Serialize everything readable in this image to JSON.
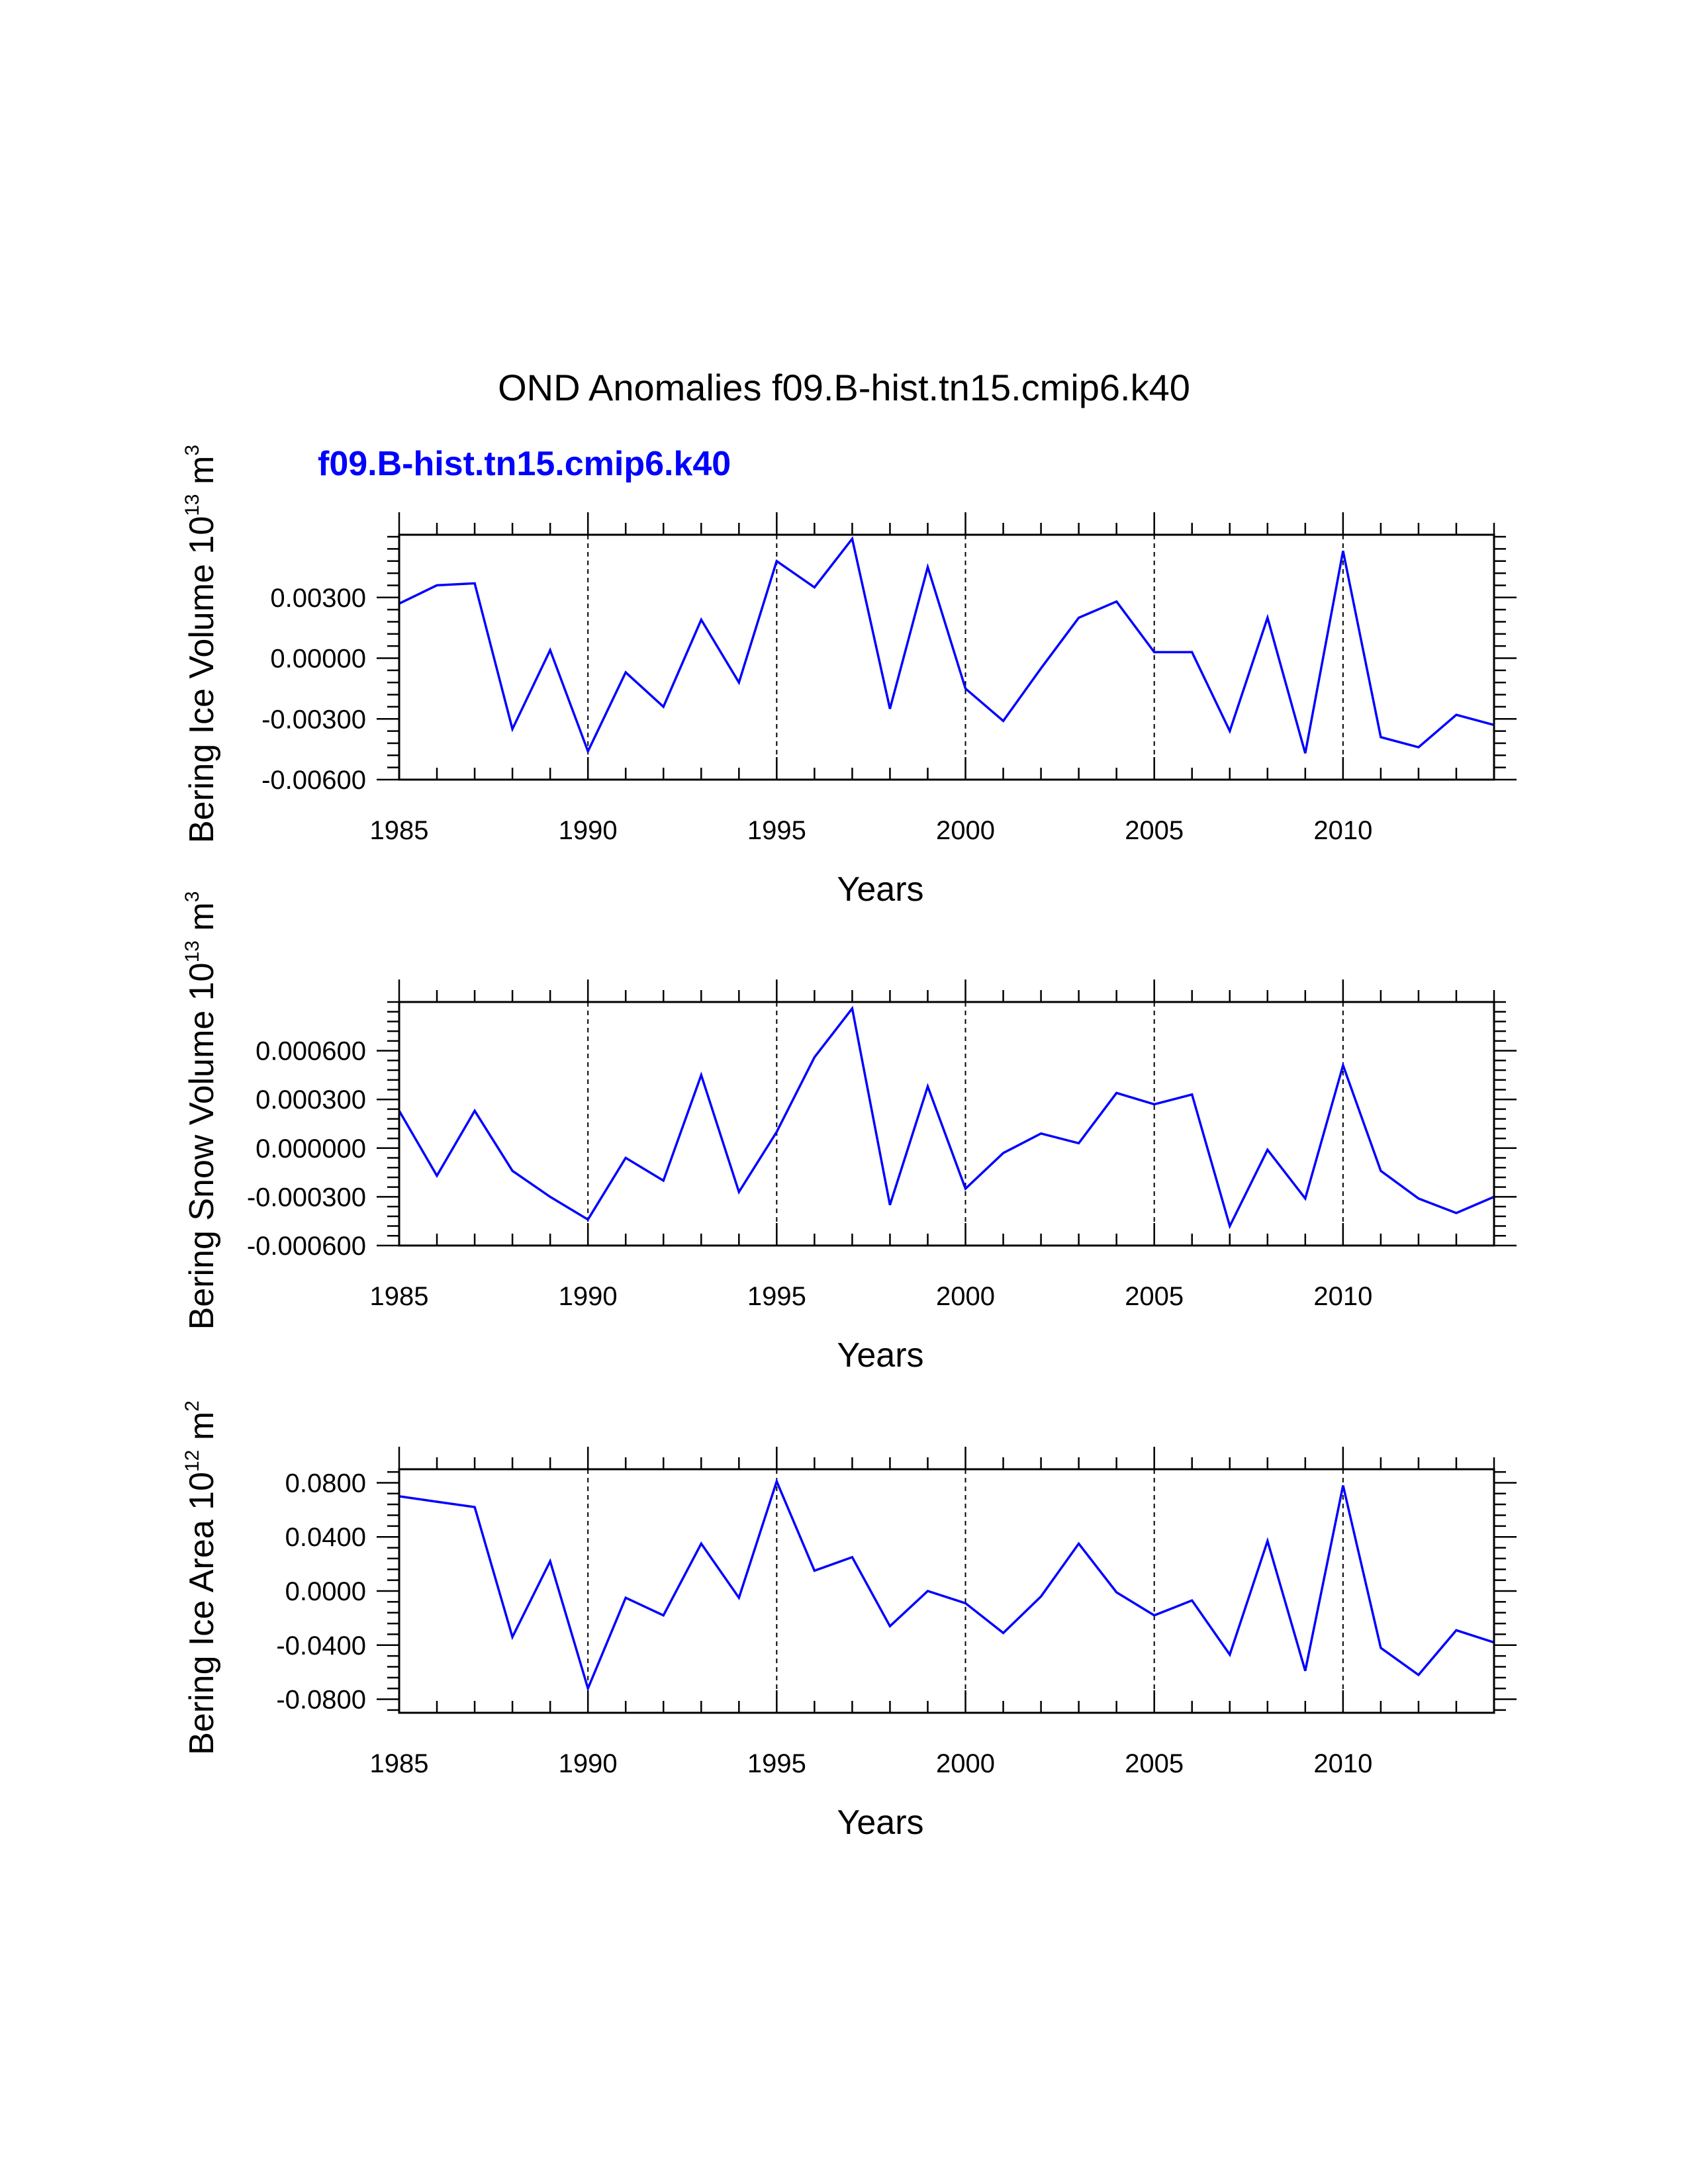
{
  "title": "OND Anomalies f09.B-hist.tn15.cmip6.k40",
  "legend": {
    "label": "f09.B-hist.tn15.cmip6.k40",
    "color": "#0000ff"
  },
  "colors": {
    "series": "#0000ff",
    "axis": "#000000",
    "grid": "#000000"
  },
  "chart_data": [
    {
      "type": "line",
      "name": "ice-volume",
      "ylabel_main": "Bering Ice Volume 10",
      "ylabel_exp": "13",
      "ylabel_unit": " m",
      "ylabel_unit_exp": "3",
      "xlabel": "Years",
      "xlim": [
        1985,
        2014
      ],
      "ylim": [
        -0.006,
        0.0061
      ],
      "xticks": [
        "1985",
        "1990",
        "1995",
        "2000",
        "2005",
        "2010"
      ],
      "yticks": [
        {
          "v": 0.003,
          "label": "0.00300"
        },
        {
          "v": 0.0,
          "label": "0.00000"
        },
        {
          "v": -0.003,
          "label": "-0.00300"
        },
        {
          "v": -0.006,
          "label": "-0.00600"
        }
      ],
      "vgrid": [
        1990,
        1995,
        2000,
        2005,
        2010
      ],
      "x": [
        1985,
        1986,
        1987,
        1988,
        1989,
        1990,
        1991,
        1992,
        1993,
        1994,
        1995,
        1996,
        1997,
        1998,
        1999,
        2000,
        2001,
        2002,
        2003,
        2004,
        2005,
        2006,
        2007,
        2008,
        2009,
        2010,
        2011,
        2012,
        2013,
        2014
      ],
      "values": [
        0.0027,
        0.0036,
        0.0037,
        -0.0035,
        0.0004,
        -0.0046,
        -0.0007,
        -0.0024,
        0.0019,
        -0.0012,
        0.0048,
        0.0035,
        0.0059,
        -0.0025,
        0.0045,
        -0.0015,
        -0.0031,
        -0.0005,
        0.002,
        0.0028,
        0.0003,
        0.0003,
        -0.0036,
        0.002,
        -0.0047,
        0.0053,
        -0.0039,
        -0.0044,
        -0.0028,
        -0.0033
      ]
    },
    {
      "type": "line",
      "name": "snow-volume",
      "ylabel_main": "Bering Snow Volume 10",
      "ylabel_exp": "13",
      "ylabel_unit": " m",
      "ylabel_unit_exp": "3",
      "xlabel": "Years",
      "xlim": [
        1985,
        2014
      ],
      "ylim": [
        -0.0006,
        0.0009
      ],
      "xticks": [
        "1985",
        "1990",
        "1995",
        "2000",
        "2005",
        "2010"
      ],
      "yticks": [
        {
          "v": 0.0006,
          "label": "0.000600"
        },
        {
          "v": 0.0003,
          "label": "0.000300"
        },
        {
          "v": 0.0,
          "label": "0.000000"
        },
        {
          "v": -0.0003,
          "label": "-0.000300"
        },
        {
          "v": -0.0006,
          "label": "-0.000600"
        }
      ],
      "vgrid": [
        1990,
        1995,
        2000,
        2005,
        2010
      ],
      "x": [
        1985,
        1986,
        1987,
        1988,
        1989,
        1990,
        1991,
        1992,
        1993,
        1994,
        1995,
        1996,
        1997,
        1998,
        1999,
        2000,
        2001,
        2002,
        2003,
        2004,
        2005,
        2006,
        2007,
        2008,
        2009,
        2010,
        2011,
        2012,
        2013,
        2014
      ],
      "values": [
        0.00023,
        -0.00017,
        0.00023,
        -0.00014,
        -0.0003,
        -0.00044,
        -6e-05,
        -0.0002,
        0.00045,
        -0.00027,
        0.0001,
        0.00056,
        0.00086,
        -0.00035,
        0.00038,
        -0.00025,
        -3e-05,
        9e-05,
        3e-05,
        0.00034,
        0.00027,
        0.00033,
        -0.00048,
        -1e-05,
        -0.00031,
        0.00051,
        -0.00014,
        -0.00031,
        -0.0004,
        -0.0003
      ]
    },
    {
      "type": "line",
      "name": "ice-area",
      "ylabel_main": "Bering Ice Area 10",
      "ylabel_exp": "12",
      "ylabel_unit": " m",
      "ylabel_unit_exp": "2",
      "xlabel": "Years",
      "xlim": [
        1985,
        2014
      ],
      "ylim": [
        -0.09,
        0.09
      ],
      "xticks": [
        "1985",
        "1990",
        "1995",
        "2000",
        "2005",
        "2010"
      ],
      "yticks": [
        {
          "v": 0.08,
          "label": "0.0800"
        },
        {
          "v": 0.04,
          "label": "0.0400"
        },
        {
          "v": 0.0,
          "label": "0.0000"
        },
        {
          "v": -0.04,
          "label": "-0.0400"
        },
        {
          "v": -0.08,
          "label": "-0.0800"
        }
      ],
      "vgrid": [
        1990,
        1995,
        2000,
        2005,
        2010
      ],
      "x": [
        1985,
        1986,
        1987,
        1988,
        1989,
        1990,
        1991,
        1992,
        1993,
        1994,
        1995,
        1996,
        1997,
        1998,
        1999,
        2000,
        2001,
        2002,
        2003,
        2004,
        2005,
        2006,
        2007,
        2008,
        2009,
        2010,
        2011,
        2012,
        2013,
        2014
      ],
      "values": [
        0.07,
        0.066,
        0.062,
        -0.034,
        0.022,
        -0.072,
        -0.005,
        -0.018,
        0.035,
        -0.005,
        0.081,
        0.015,
        0.025,
        -0.026,
        0.0,
        -0.009,
        -0.031,
        -0.004,
        0.035,
        -0.001,
        -0.018,
        -0.007,
        -0.047,
        0.037,
        -0.059,
        0.078,
        -0.042,
        -0.062,
        -0.029,
        -0.038
      ]
    }
  ]
}
